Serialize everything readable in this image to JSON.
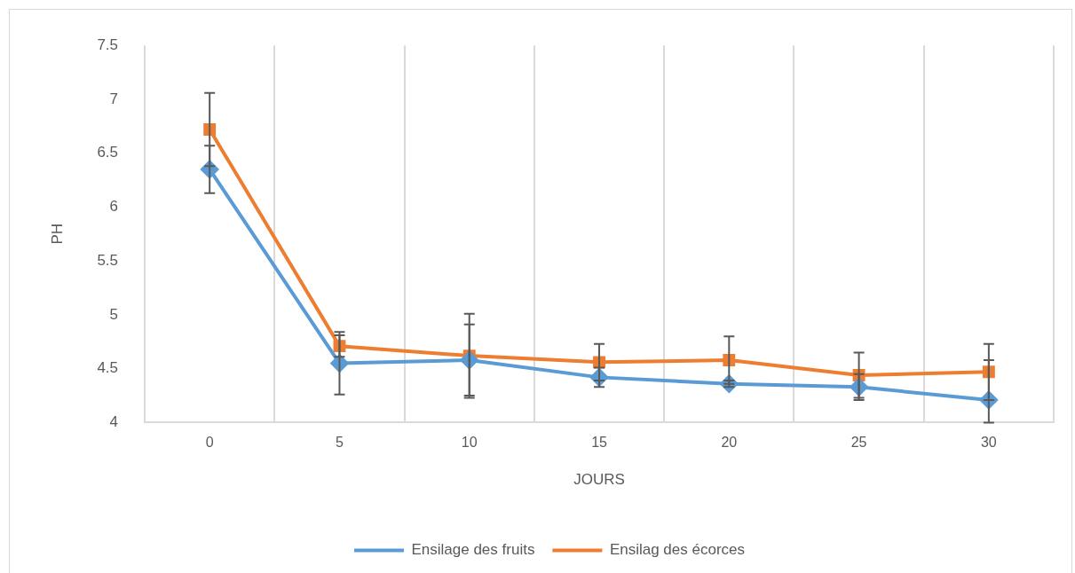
{
  "chart_data": {
    "type": "line",
    "xlabel": "JOURS",
    "ylabel": "PH",
    "categories": [
      "0",
      "5",
      "10",
      "15",
      "20",
      "25",
      "30"
    ],
    "series": [
      {
        "name": "Ensilage des fruits",
        "color": "#5b9bd5",
        "marker": "diamond",
        "values": [
          6.35,
          4.55,
          4.58,
          4.42,
          4.36,
          4.33,
          4.21
        ],
        "errors": [
          0.22,
          0.29,
          0.33,
          0.09,
          0.03,
          0.12,
          [
            4,
            4.58
          ]
        ]
      },
      {
        "name": "Ensilag des écorces",
        "color": "#ed7d31",
        "marker": "square",
        "values": [
          6.72,
          4.71,
          4.62,
          4.56,
          4.58,
          4.44,
          4.47
        ],
        "errors": [
          0.34,
          0.1,
          0.39,
          0.17,
          0.22,
          0.21,
          0.26
        ]
      }
    ],
    "ylim": [
      4,
      7.5
    ],
    "yticks": [
      4,
      {
        "value": 4.5,
        "label": "4.5"
      },
      5,
      {
        "value": 5.5,
        "label": "5.5"
      },
      6,
      {
        "value": 6.5,
        "label": "6.5"
      },
      7,
      {
        "value": 7.5,
        "label": "7.5"
      }
    ],
    "grid": "x",
    "legend": "bottom",
    "line_style": "solid"
  }
}
